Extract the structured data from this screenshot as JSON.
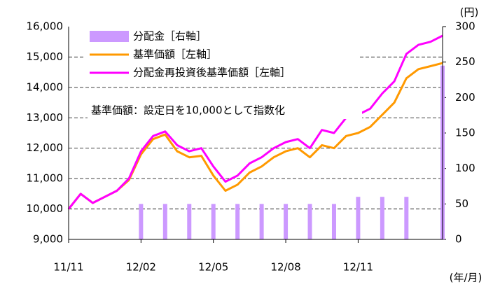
{
  "chart_data": {
    "type": "line",
    "annotation": "基準価額：設定日を10,000として指数化",
    "y2label": "(円)",
    "xlabel": "(年/月)",
    "categories": [
      "11/11",
      null,
      null,
      null,
      null,
      null,
      "12/02",
      null,
      null,
      null,
      null,
      null,
      "12/05",
      null,
      null,
      null,
      null,
      null,
      "12/08",
      null,
      null,
      null,
      null,
      null,
      "12/11",
      null,
      null,
      null,
      null,
      null,
      null,
      null
    ],
    "series": [
      {
        "name": "分配金［右軸］",
        "type": "bar",
        "axis": "y2",
        "color": "#cc99ff",
        "values": [
          null,
          null,
          null,
          null,
          null,
          null,
          50,
          null,
          50,
          null,
          50,
          null,
          50,
          null,
          50,
          null,
          50,
          null,
          50,
          null,
          50,
          null,
          50,
          null,
          60,
          null,
          60,
          null,
          60,
          null,
          null,
          245
        ]
      },
      {
        "name": "基準価額［左軸］",
        "type": "line",
        "color": "#ff9900",
        "values": [
          10000,
          10500,
          10200,
          10400,
          10600,
          10950,
          11800,
          12300,
          12450,
          11900,
          11700,
          11750,
          11100,
          10600,
          10800,
          11200,
          11400,
          11700,
          11900,
          12000,
          11700,
          12100,
          12000,
          12400,
          12500,
          12700,
          13100,
          13500,
          14300,
          14600,
          14700,
          14800
        ]
      },
      {
        "name": "分配金再投資後基準価額［左軸］",
        "type": "line",
        "color": "#ff00ff",
        "values": [
          10000,
          10500,
          10200,
          10400,
          10600,
          11000,
          11900,
          12400,
          12550,
          12100,
          11900,
          12000,
          11400,
          10900,
          11100,
          11500,
          11700,
          12000,
          12200,
          12300,
          12000,
          12600,
          12500,
          13000,
          13100,
          13300,
          13800,
          14200,
          15100,
          15400,
          15500,
          15700
        ]
      }
    ],
    "ylim": [
      9000,
      16000
    ],
    "yticks": [
      {
        "value": 9000,
        "label": "9,000"
      },
      {
        "value": 10000,
        "label": "10,000"
      },
      {
        "value": 11000,
        "label": "11,000"
      },
      {
        "value": 12000,
        "label": "12,000"
      },
      {
        "value": 13000,
        "label": "13,000"
      },
      {
        "value": 14000,
        "label": "14,000"
      },
      {
        "value": 15000,
        "label": "15,000"
      },
      {
        "value": 16000,
        "label": "16,000"
      }
    ],
    "y2lim": [
      0,
      300
    ],
    "y2ticks": [
      0,
      50,
      100,
      150,
      200,
      250,
      300
    ],
    "grid": true
  }
}
